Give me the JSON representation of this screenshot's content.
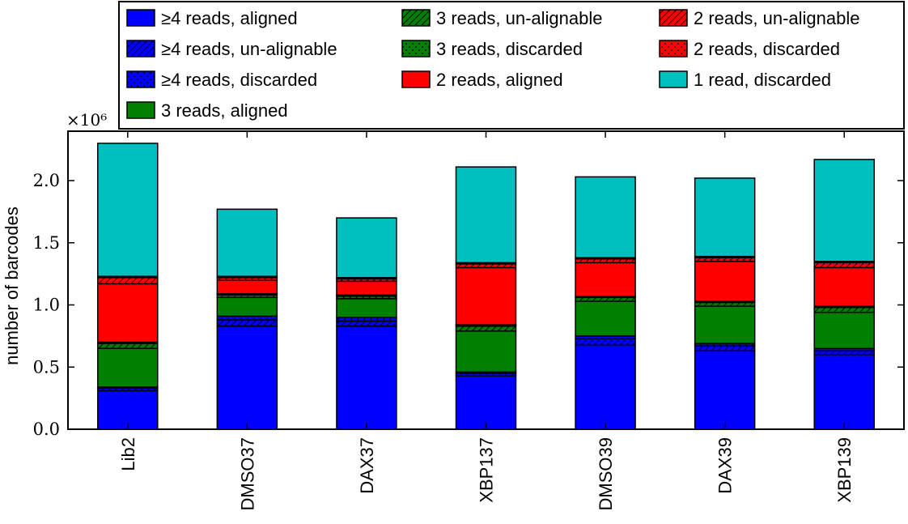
{
  "chart_data": {
    "type": "bar",
    "stacked": true,
    "title": "",
    "xlabel": "",
    "ylabel": "number of barcodes",
    "y_multiplier_label": "×10⁶",
    "ylim": [
      0,
      2.35
    ],
    "yticks": [
      0.0,
      0.5,
      1.0,
      1.5,
      2.0
    ],
    "ytick_labels": [
      "0.0",
      "0.5",
      "1.0",
      "1.5",
      "2.0"
    ],
    "categories": [
      "Lib2",
      "DMSO37",
      "DAX37",
      "XBP137",
      "DMSO39",
      "DAX39",
      "XBP139"
    ],
    "legend_position": "top",
    "grid": false,
    "series": [
      {
        "name": "≥4 reads, aligned",
        "color": "#0000ff",
        "pattern": "none",
        "values": [
          0.31,
          0.83,
          0.83,
          0.43,
          0.68,
          0.63,
          0.6
        ]
      },
      {
        "name": "≥4 reads, un-alignable",
        "color": "#0000ff",
        "pattern": "hatch",
        "values": [
          0.02,
          0.05,
          0.04,
          0.02,
          0.05,
          0.04,
          0.03
        ]
      },
      {
        "name": "≥4 reads, discarded",
        "color": "#0000ff",
        "pattern": "dots",
        "values": [
          0.01,
          0.03,
          0.03,
          0.01,
          0.02,
          0.02,
          0.02
        ]
      },
      {
        "name": "3 reads, aligned",
        "color": "#008000",
        "pattern": "none",
        "values": [
          0.31,
          0.15,
          0.15,
          0.33,
          0.28,
          0.3,
          0.29
        ]
      },
      {
        "name": "3 reads, un-alignable",
        "color": "#008000",
        "pattern": "hatch",
        "values": [
          0.04,
          0.02,
          0.02,
          0.04,
          0.03,
          0.03,
          0.04
        ]
      },
      {
        "name": "3 reads, discarded",
        "color": "#008000",
        "pattern": "dots",
        "values": [
          0.01,
          0.01,
          0.01,
          0.01,
          0.01,
          0.01,
          0.01
        ]
      },
      {
        "name": "2 reads, aligned",
        "color": "#ff0000",
        "pattern": "none",
        "values": [
          0.47,
          0.11,
          0.11,
          0.46,
          0.27,
          0.32,
          0.31
        ]
      },
      {
        "name": "2 reads, un-alignable",
        "color": "#ff0000",
        "pattern": "hatch",
        "values": [
          0.05,
          0.02,
          0.02,
          0.03,
          0.03,
          0.03,
          0.04
        ]
      },
      {
        "name": "2 reads, discarded",
        "color": "#ff0000",
        "pattern": "dots",
        "values": [
          0.01,
          0.01,
          0.01,
          0.01,
          0.01,
          0.01,
          0.01
        ]
      },
      {
        "name": "1 read, discarded",
        "color": "#00bfbf",
        "pattern": "none",
        "values": [
          1.07,
          0.54,
          0.48,
          0.77,
          0.65,
          0.63,
          0.82
        ]
      }
    ]
  }
}
